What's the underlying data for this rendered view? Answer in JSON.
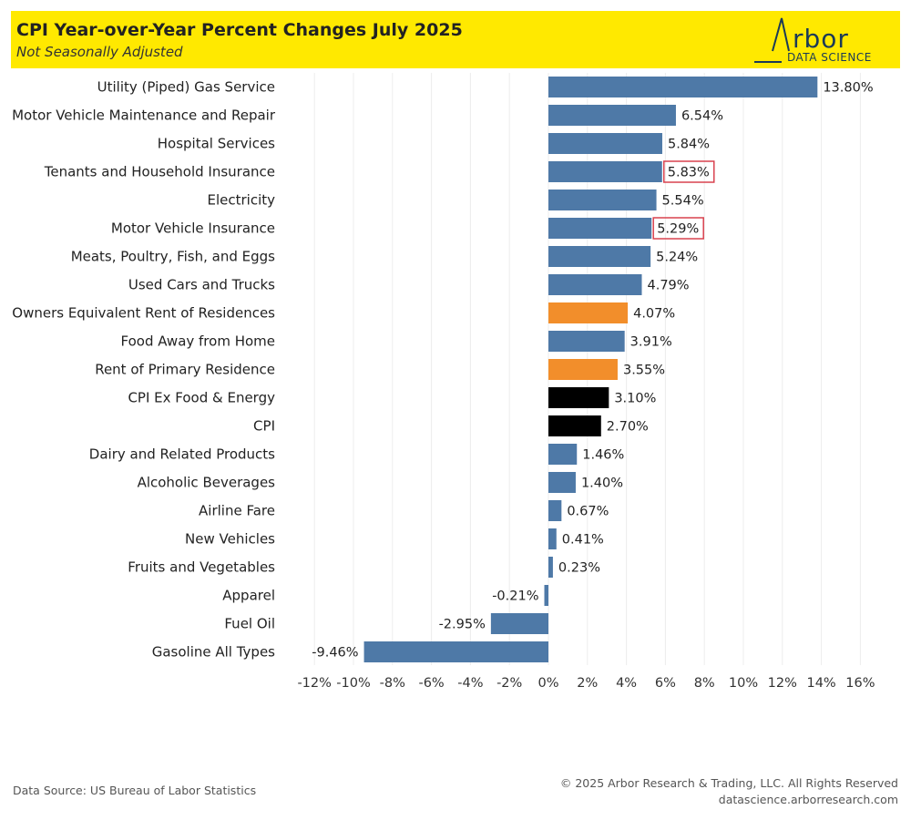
{
  "header": {
    "title": "CPI Year-over-Year Percent Changes July 2025",
    "subtitle": "Not Seasonally Adjusted",
    "logo_word": "rbor",
    "logo_sub": "DATA SCIENCE"
  },
  "footer": {
    "source": "Data Source: US Bureau of Labor Statistics",
    "copyright": "© 2025 Arbor Research & Trading, LLC. All Rights Reserved",
    "website": "datascience.arborresearch.com"
  },
  "colors": {
    "default": "#4e79a7",
    "shelter": "#f28e2b",
    "headline": "#000000",
    "highlight_box": "#d9424f",
    "banner": "#ffe900"
  },
  "chart_data": {
    "type": "bar",
    "orientation": "horizontal",
    "categories": [
      "Utility (Piped) Gas Service",
      "Motor Vehicle Maintenance and Repair",
      "Hospital Services",
      "Tenants and Household Insurance",
      "Electricity",
      "Motor Vehicle Insurance",
      "Meats, Poultry, Fish, and Eggs",
      "Used Cars and Trucks",
      "Owners Equivalent Rent of Residences",
      "Food Away from Home",
      "Rent of Primary Residence",
      "CPI Ex Food & Energy",
      "CPI",
      "Dairy and Related Products",
      "Alcoholic Beverages",
      "Airline Fare",
      "New Vehicles",
      "Fruits and Vegetables",
      "Apparel",
      "Fuel Oil",
      "Gasoline All Types"
    ],
    "values": [
      13.8,
      6.54,
      5.84,
      5.83,
      5.54,
      5.29,
      5.24,
      4.79,
      4.07,
      3.91,
      3.55,
      3.1,
      2.7,
      1.46,
      1.4,
      0.67,
      0.41,
      0.23,
      -0.21,
      -2.95,
      -9.46
    ],
    "value_labels": [
      "13.80%",
      "6.54%",
      "5.84%",
      "5.83%",
      "5.54%",
      "5.29%",
      "5.24%",
      "4.79%",
      "4.07%",
      "3.91%",
      "3.55%",
      "3.10%",
      "2.70%",
      "1.46%",
      "1.40%",
      "0.67%",
      "0.41%",
      "0.23%",
      "-0.21%",
      "-2.95%",
      "-9.46%"
    ],
    "color_groups": [
      "default",
      "default",
      "default",
      "default",
      "default",
      "default",
      "default",
      "default",
      "shelter",
      "default",
      "shelter",
      "headline",
      "headline",
      "default",
      "default",
      "default",
      "default",
      "default",
      "default",
      "default",
      "default"
    ],
    "highlighted": [
      "Tenants and Household Insurance",
      "Motor Vehicle Insurance"
    ],
    "xlim": [
      -13,
      17
    ],
    "xticks": [
      -12,
      -10,
      -8,
      -6,
      -4,
      -2,
      0,
      2,
      4,
      6,
      8,
      10,
      12,
      14,
      16
    ],
    "xtick_labels": [
      "-12%",
      "-10%",
      "-8%",
      "-6%",
      "-4%",
      "-2%",
      "0%",
      "2%",
      "4%",
      "6%",
      "8%",
      "10%",
      "12%",
      "14%",
      "16%"
    ],
    "grid": true
  }
}
